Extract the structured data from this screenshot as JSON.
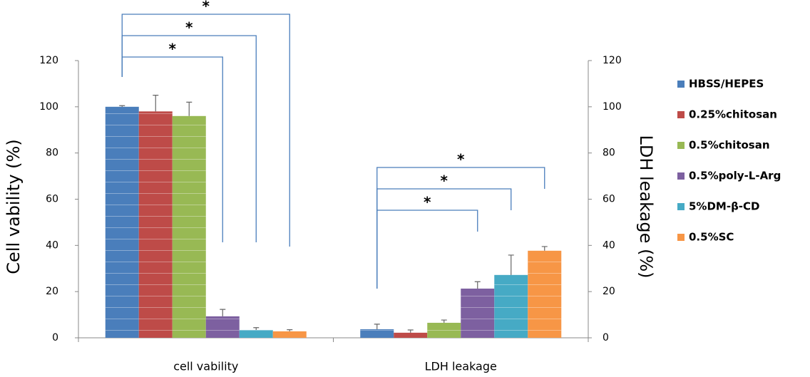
{
  "chart_data": {
    "type": "bar",
    "categories": [
      "cell vability",
      "LDH leakage"
    ],
    "y_label": "Cell vability (%)",
    "y2_label": "LDH leakage (%)",
    "ylim": [
      0,
      120
    ],
    "yticks": [
      0,
      20,
      40,
      60,
      80,
      100,
      120
    ],
    "y2lim": [
      0,
      120
    ],
    "y2ticks": [
      0,
      20,
      40,
      60,
      80,
      100,
      120
    ],
    "legend": "right",
    "series": [
      {
        "name": "HBSS/HEPES",
        "color": "#4a7ebb",
        "values": [
          100,
          3.7
        ],
        "errors": [
          0.5,
          2.2
        ]
      },
      {
        "name": "0.25%chitosan",
        "color": "#be4b48",
        "values": [
          98,
          2.2
        ],
        "errors": [
          7,
          1.2
        ]
      },
      {
        "name": "0.5%chitosan",
        "color": "#98b954",
        "values": [
          96,
          6.5
        ],
        "errors": [
          6,
          1.2
        ]
      },
      {
        "name": "0.5%poly-L-Arg",
        "color": "#7d60a0",
        "values": [
          9.3,
          21.3
        ],
        "errors": [
          3,
          3
        ]
      },
      {
        "name": "5%DM-β-CD",
        "color": "#46aac5",
        "values": [
          3.4,
          27.2
        ],
        "errors": [
          1,
          8.6
        ]
      },
      {
        "name": "0.5%SC",
        "color": "#f79646",
        "values": [
          2.8,
          37.7
        ],
        "errors": [
          0.7,
          1.8
        ]
      }
    ],
    "annotations": [
      "*",
      "*",
      "*",
      "*",
      "*",
      "*"
    ]
  }
}
